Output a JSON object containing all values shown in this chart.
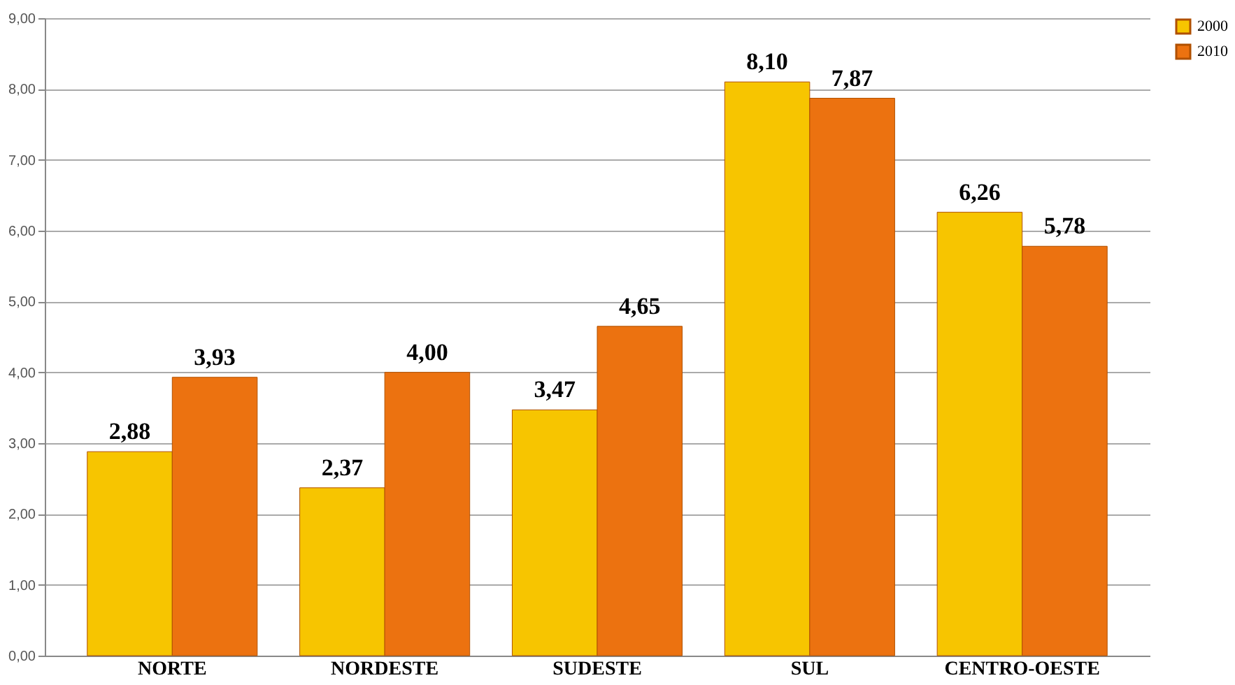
{
  "chart_data": {
    "type": "bar",
    "categories": [
      "NORTE",
      "NORDESTE",
      "SUDESTE",
      "SUL",
      "CENTRO-OESTE"
    ],
    "series": [
      {
        "name": "2000",
        "color": "#f7c500",
        "values": [
          2.88,
          2.37,
          3.47,
          8.1,
          6.26
        ],
        "value_labels": [
          "2,88",
          "2,37",
          "3,47",
          "8,10",
          "6,26"
        ]
      },
      {
        "name": "2010",
        "color": "#ec7210",
        "values": [
          3.93,
          4.0,
          4.65,
          7.87,
          5.78
        ],
        "value_labels": [
          "3,93",
          "4,00",
          "4,65",
          "7,87",
          "5,78"
        ]
      }
    ],
    "ylim": [
      0,
      9
    ],
    "yticks": [
      {
        "value": 0,
        "label": "0,00"
      },
      {
        "value": 1,
        "label": "1,00"
      },
      {
        "value": 2,
        "label": "2,00"
      },
      {
        "value": 3,
        "label": "3,00"
      },
      {
        "value": 4,
        "label": "4,00"
      },
      {
        "value": 5,
        "label": "5,00"
      },
      {
        "value": 6,
        "label": "6,00"
      },
      {
        "value": 7,
        "label": "7,00"
      },
      {
        "value": 8,
        "label": "8,00"
      },
      {
        "value": 9,
        "label": "9,00"
      }
    ],
    "grid": "y",
    "legend": "right"
  }
}
